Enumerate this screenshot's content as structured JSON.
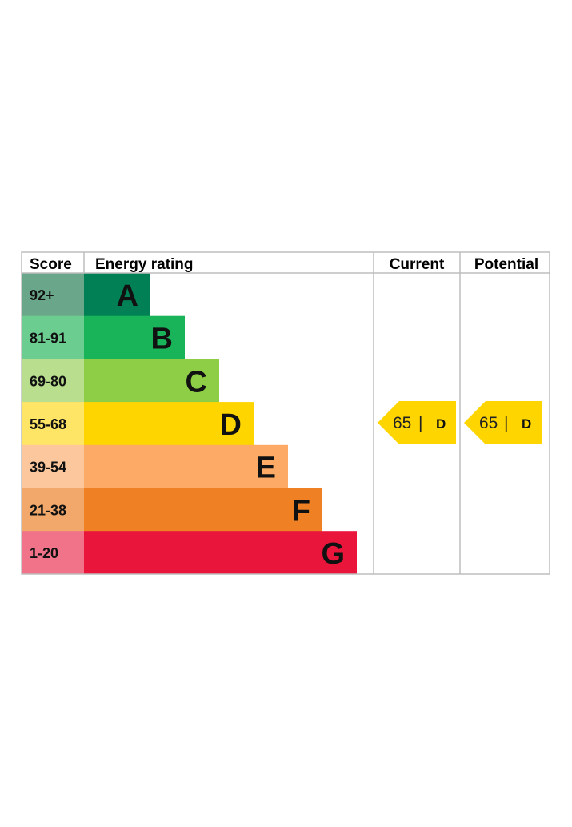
{
  "chart_data": {
    "type": "table",
    "headers": {
      "score": "Score",
      "energy_rating": "Energy rating",
      "current": "Current",
      "potential": "Potential"
    },
    "bands": [
      {
        "band": "A",
        "range": "92+",
        "color": "#008054",
        "score_color": "#6aa68a"
      },
      {
        "band": "B",
        "range": "81-91",
        "color": "#19b459",
        "score_color": "#6ccd91"
      },
      {
        "band": "C",
        "range": "69-80",
        "color": "#8dce46",
        "score_color": "#b9df8e"
      },
      {
        "band": "D",
        "range": "55-68",
        "color": "#ffd500",
        "score_color": "#ffe566"
      },
      {
        "band": "E",
        "range": "39-54",
        "color": "#fcaa65",
        "score_color": "#fcc79c"
      },
      {
        "band": "F",
        "range": "21-38",
        "color": "#ef8023",
        "score_color": "#f2a86a"
      },
      {
        "band": "G",
        "range": "1-20",
        "color": "#e9153b",
        "score_color": "#f0738a"
      }
    ],
    "current": {
      "score": 65,
      "separator": "|",
      "band": "D",
      "color": "#ffd500"
    },
    "potential": {
      "score": 65,
      "separator": "|",
      "band": "D",
      "color": "#ffd500"
    }
  }
}
